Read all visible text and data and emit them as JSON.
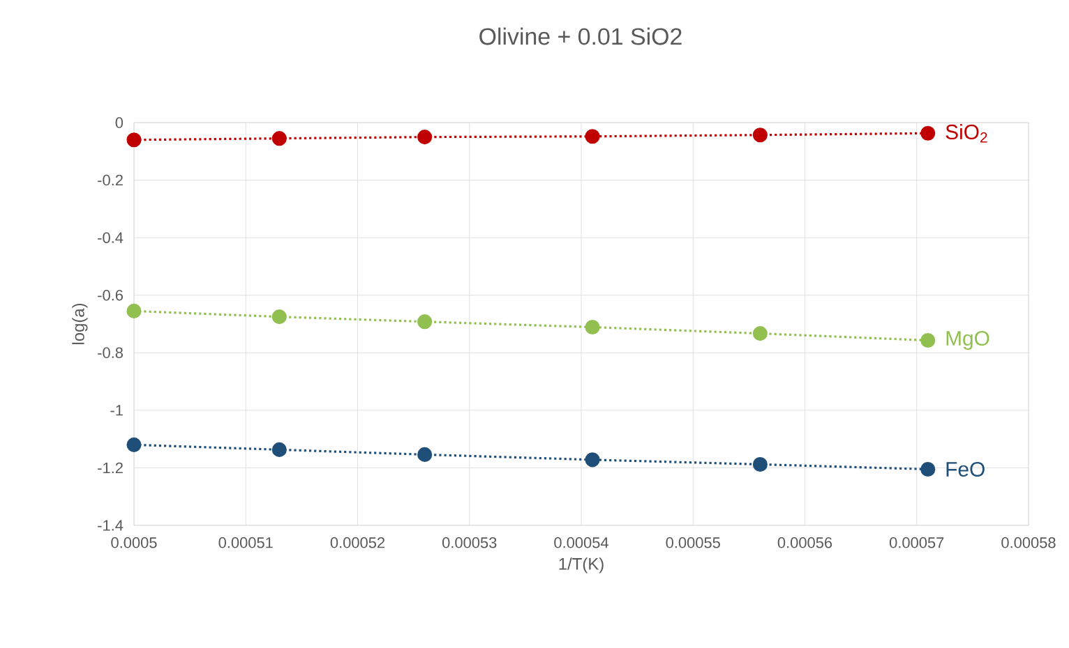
{
  "chart_data": {
    "type": "line",
    "title": "Olivine + 0.01 SiO2",
    "xlabel": "1/T(K)",
    "ylabel": "log(a)",
    "x": [
      0.0005,
      0.000513,
      0.000526,
      0.000541,
      0.000556,
      0.000571
    ],
    "series": [
      {
        "name": "SiO$_{2}$",
        "color": "#c00000",
        "values": [
          -0.06,
          -0.055,
          -0.05,
          -0.048,
          -0.043,
          -0.037
        ]
      },
      {
        "name": "MgO",
        "color": "#92c050",
        "values": [
          -0.655,
          -0.675,
          -0.692,
          -0.711,
          -0.733,
          -0.757
        ]
      },
      {
        "name": "FeO",
        "color": "#1f4e79",
        "values": [
          -1.12,
          -1.137,
          -1.154,
          -1.172,
          -1.188,
          -1.205
        ]
      }
    ],
    "xlim": [
      0.0005,
      0.00058
    ],
    "xticks": [
      0.0005,
      0.00051,
      0.00052,
      0.00053,
      0.00054,
      0.00055,
      0.00056,
      0.00057,
      0.00058
    ],
    "ylim": [
      -1.4,
      0
    ],
    "yticks": [
      -1.4,
      -1.2,
      -1,
      -0.8,
      -0.6,
      -0.4,
      -0.2,
      0
    ],
    "grid": true,
    "marker": "circle",
    "line_style": "dotted"
  }
}
